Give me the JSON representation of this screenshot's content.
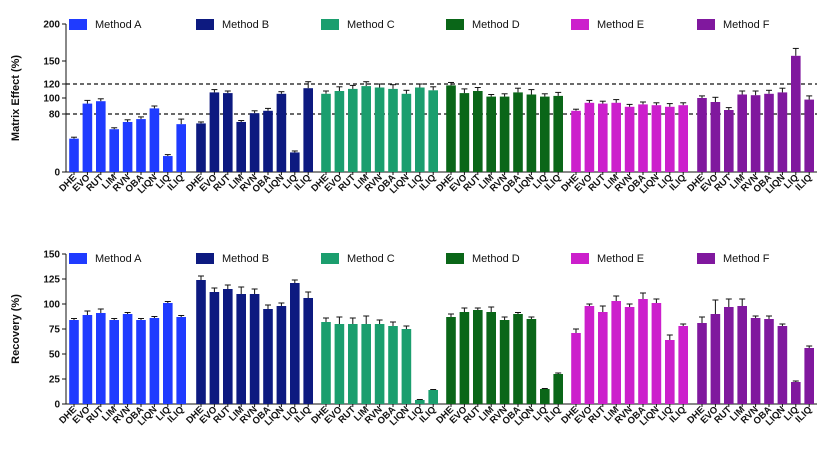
{
  "chart_data": [
    {
      "type": "bar",
      "ylabel": "Matrix Effect (%)",
      "ylim": [
        0,
        200
      ],
      "yticks": [
        0,
        80,
        100,
        120,
        150,
        200
      ],
      "reference_lines": [
        80,
        120
      ],
      "categories": [
        "DHE",
        "EVO",
        "RUT",
        "LIM",
        "RVN",
        "OBA",
        "LIQN",
        "LIQ",
        "ILIQ"
      ],
      "series": [
        {
          "name": "Method A",
          "color": "#1f3bff",
          "values": [
            46,
            93,
            96,
            59,
            69,
            73,
            87,
            22,
            66
          ],
          "errors": [
            2,
            4,
            3,
            2,
            3,
            3,
            3,
            2,
            7
          ]
        },
        {
          "name": "Method B",
          "color": "#0d1a80",
          "values": [
            67,
            108,
            107,
            69,
            81,
            84,
            106,
            27,
            114
          ],
          "errors": [
            2,
            4,
            3,
            2,
            3,
            3,
            3,
            2,
            9
          ]
        },
        {
          "name": "Method C",
          "color": "#1b9e6e",
          "values": [
            106,
            110,
            113,
            117,
            115,
            113,
            106,
            115,
            111
          ],
          "errors": [
            4,
            6,
            5,
            6,
            5,
            6,
            5,
            5,
            5
          ]
        },
        {
          "name": "Method D",
          "color": "#0a6618",
          "values": [
            118,
            107,
            110,
            102,
            102,
            108,
            105,
            102,
            103
          ],
          "errors": [
            4,
            6,
            5,
            3,
            4,
            6,
            7,
            4,
            5
          ]
        },
        {
          "name": "Method E",
          "color": "#cc1fcc",
          "values": [
            84,
            94,
            93,
            94,
            89,
            92,
            91,
            89,
            91
          ],
          "errors": [
            2,
            3,
            3,
            4,
            3,
            3,
            3,
            4,
            3
          ]
        },
        {
          "name": "Method F",
          "color": "#80189e",
          "values": [
            100,
            95,
            85,
            105,
            104,
            106,
            108,
            157,
            98
          ],
          "errors": [
            3,
            6,
            3,
            5,
            6,
            5,
            6,
            10,
            5
          ]
        }
      ]
    },
    {
      "type": "bar",
      "ylabel": "Recovery (%)",
      "ylim": [
        0,
        150
      ],
      "yticks": [
        0,
        25,
        50,
        75,
        100,
        125,
        150
      ],
      "categories": [
        "DHE",
        "EVO",
        "RUT",
        "LIM",
        "RVN",
        "OBA",
        "LIQN",
        "LIQ",
        "ILIQ"
      ],
      "series": [
        {
          "name": "Method A",
          "color": "#1f3bff",
          "values": [
            84,
            89,
            91,
            84,
            90,
            84,
            86,
            101,
            87
          ],
          "errors": [
            1.5,
            4,
            4,
            1.5,
            1.5,
            1.5,
            1.5,
            1.5,
            1.5
          ]
        },
        {
          "name": "Method B",
          "color": "#0d1a80",
          "values": [
            124,
            112,
            115,
            110,
            110,
            95,
            98,
            121,
            106
          ],
          "errors": [
            4,
            4,
            4,
            7,
            5,
            4,
            3,
            3,
            6
          ]
        },
        {
          "name": "Method C",
          "color": "#1b9e6e",
          "values": [
            82,
            80,
            80,
            80,
            80,
            78,
            75,
            4,
            14
          ],
          "errors": [
            4,
            7,
            6,
            8,
            4,
            4,
            3,
            0.5,
            0.5
          ]
        },
        {
          "name": "Method D",
          "color": "#0a6618",
          "values": [
            87,
            92,
            94,
            92,
            84,
            90,
            85,
            15,
            30
          ],
          "errors": [
            3,
            4,
            2,
            5,
            3,
            1.5,
            2,
            0.5,
            1
          ]
        },
        {
          "name": "Method E",
          "color": "#cc1fcc",
          "values": [
            71,
            98,
            92,
            103,
            97,
            105,
            101,
            64,
            78
          ],
          "errors": [
            4,
            2,
            6,
            5,
            3,
            6,
            4,
            5,
            2
          ]
        },
        {
          "name": "Method F",
          "color": "#80189e",
          "values": [
            81,
            90,
            97,
            98,
            86,
            85,
            78,
            22,
            56
          ],
          "errors": [
            6,
            14,
            8,
            7,
            2,
            3,
            2,
            1,
            2
          ]
        }
      ]
    }
  ]
}
